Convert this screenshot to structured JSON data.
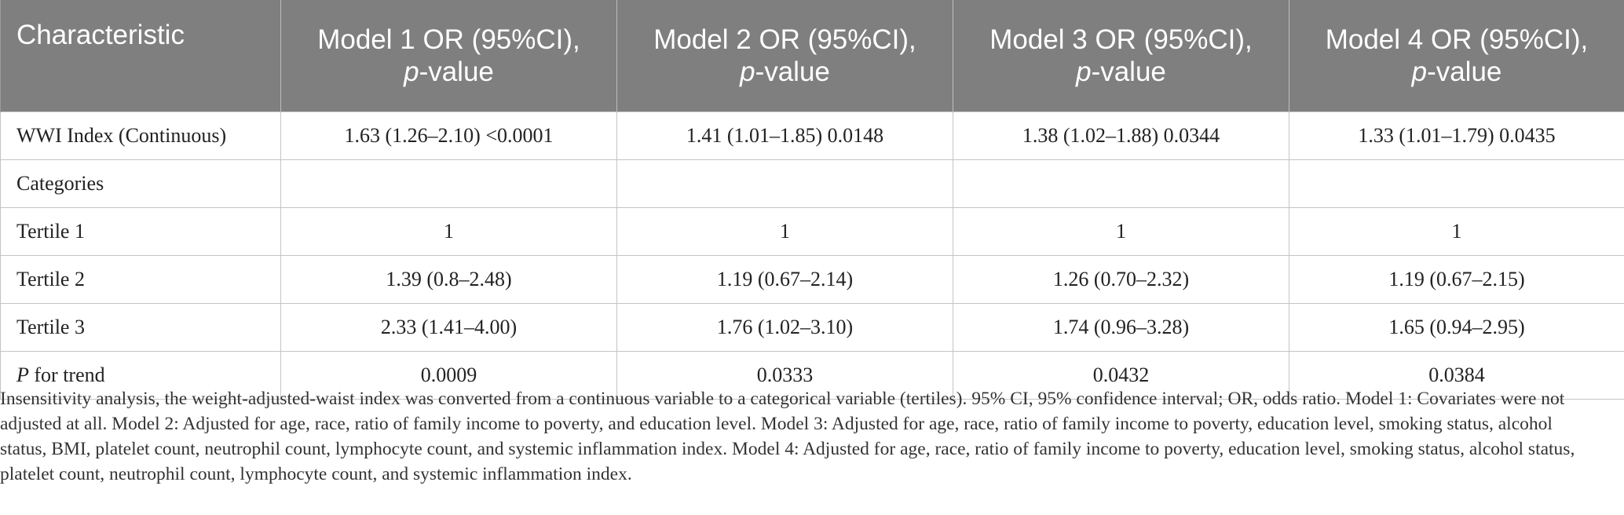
{
  "table": {
    "header": {
      "characteristic": "Characteristic",
      "models": [
        {
          "title": "Model 1 OR (95%CI),",
          "p_italic": "p",
          "p_rest": "-value"
        },
        {
          "title": "Model 2 OR (95%CI),",
          "p_italic": "p",
          "p_rest": "-value"
        },
        {
          "title": "Model 3 OR (95%CI),",
          "p_italic": "p",
          "p_rest": "-value"
        },
        {
          "title": "Model 4 OR (95%CI),",
          "p_italic": "p",
          "p_rest": "-value"
        }
      ]
    },
    "rows": [
      {
        "label": "WWI Index (Continuous)",
        "cells": [
          "1.63 (1.26–2.10) <0.0001",
          "1.41 (1.01–1.85) 0.0148",
          "1.38 (1.02–1.88) 0.0344",
          "1.33 (1.01–1.79) 0.0435"
        ]
      },
      {
        "label": "Categories",
        "cells": [
          "",
          "",
          "",
          ""
        ]
      },
      {
        "label": "Tertile 1",
        "cells": [
          "1",
          "1",
          "1",
          "1"
        ]
      },
      {
        "label": "Tertile 2",
        "cells": [
          "1.39 (0.8–2.48)",
          "1.19 (0.67–2.14)",
          "1.26 (0.70–2.32)",
          "1.19 (0.67–2.15)"
        ]
      },
      {
        "label": "Tertile 3",
        "cells": [
          "2.33 (1.41–4.00)",
          "1.76 (1.02–3.10)",
          "1.74 (0.96–3.28)",
          "1.65 (0.94–2.95)"
        ]
      },
      {
        "label_italic": "P",
        "label_rest": " for trend",
        "cells": [
          "0.0009",
          "0.0333",
          "0.0432",
          "0.0384"
        ]
      }
    ]
  },
  "footnote": "Insensitivity analysis, the weight-adjusted-waist index was converted from a continuous variable to a categorical variable (tertiles). 95% CI, 95% confidence interval; OR, odds ratio. Model 1: Covariates were not adjusted at all. Model 2: Adjusted for age, race, ratio of family income to poverty, and education level. Model 3: Adjusted for age, race, ratio of family income to poverty, education level, smoking status, alcohol status, BMI, platelet count, neutrophil count, lymphocyte count, and systemic inflammation index. Model 4: Adjusted for age, race, ratio of family income to poverty, education level, smoking status, alcohol status, platelet count, neutrophil count, lymphocyte count, and systemic inflammation index.",
  "colors": {
    "header_bg": "#7f7f7f",
    "header_text": "#ffffff",
    "grid": "#c4c4c4"
  }
}
